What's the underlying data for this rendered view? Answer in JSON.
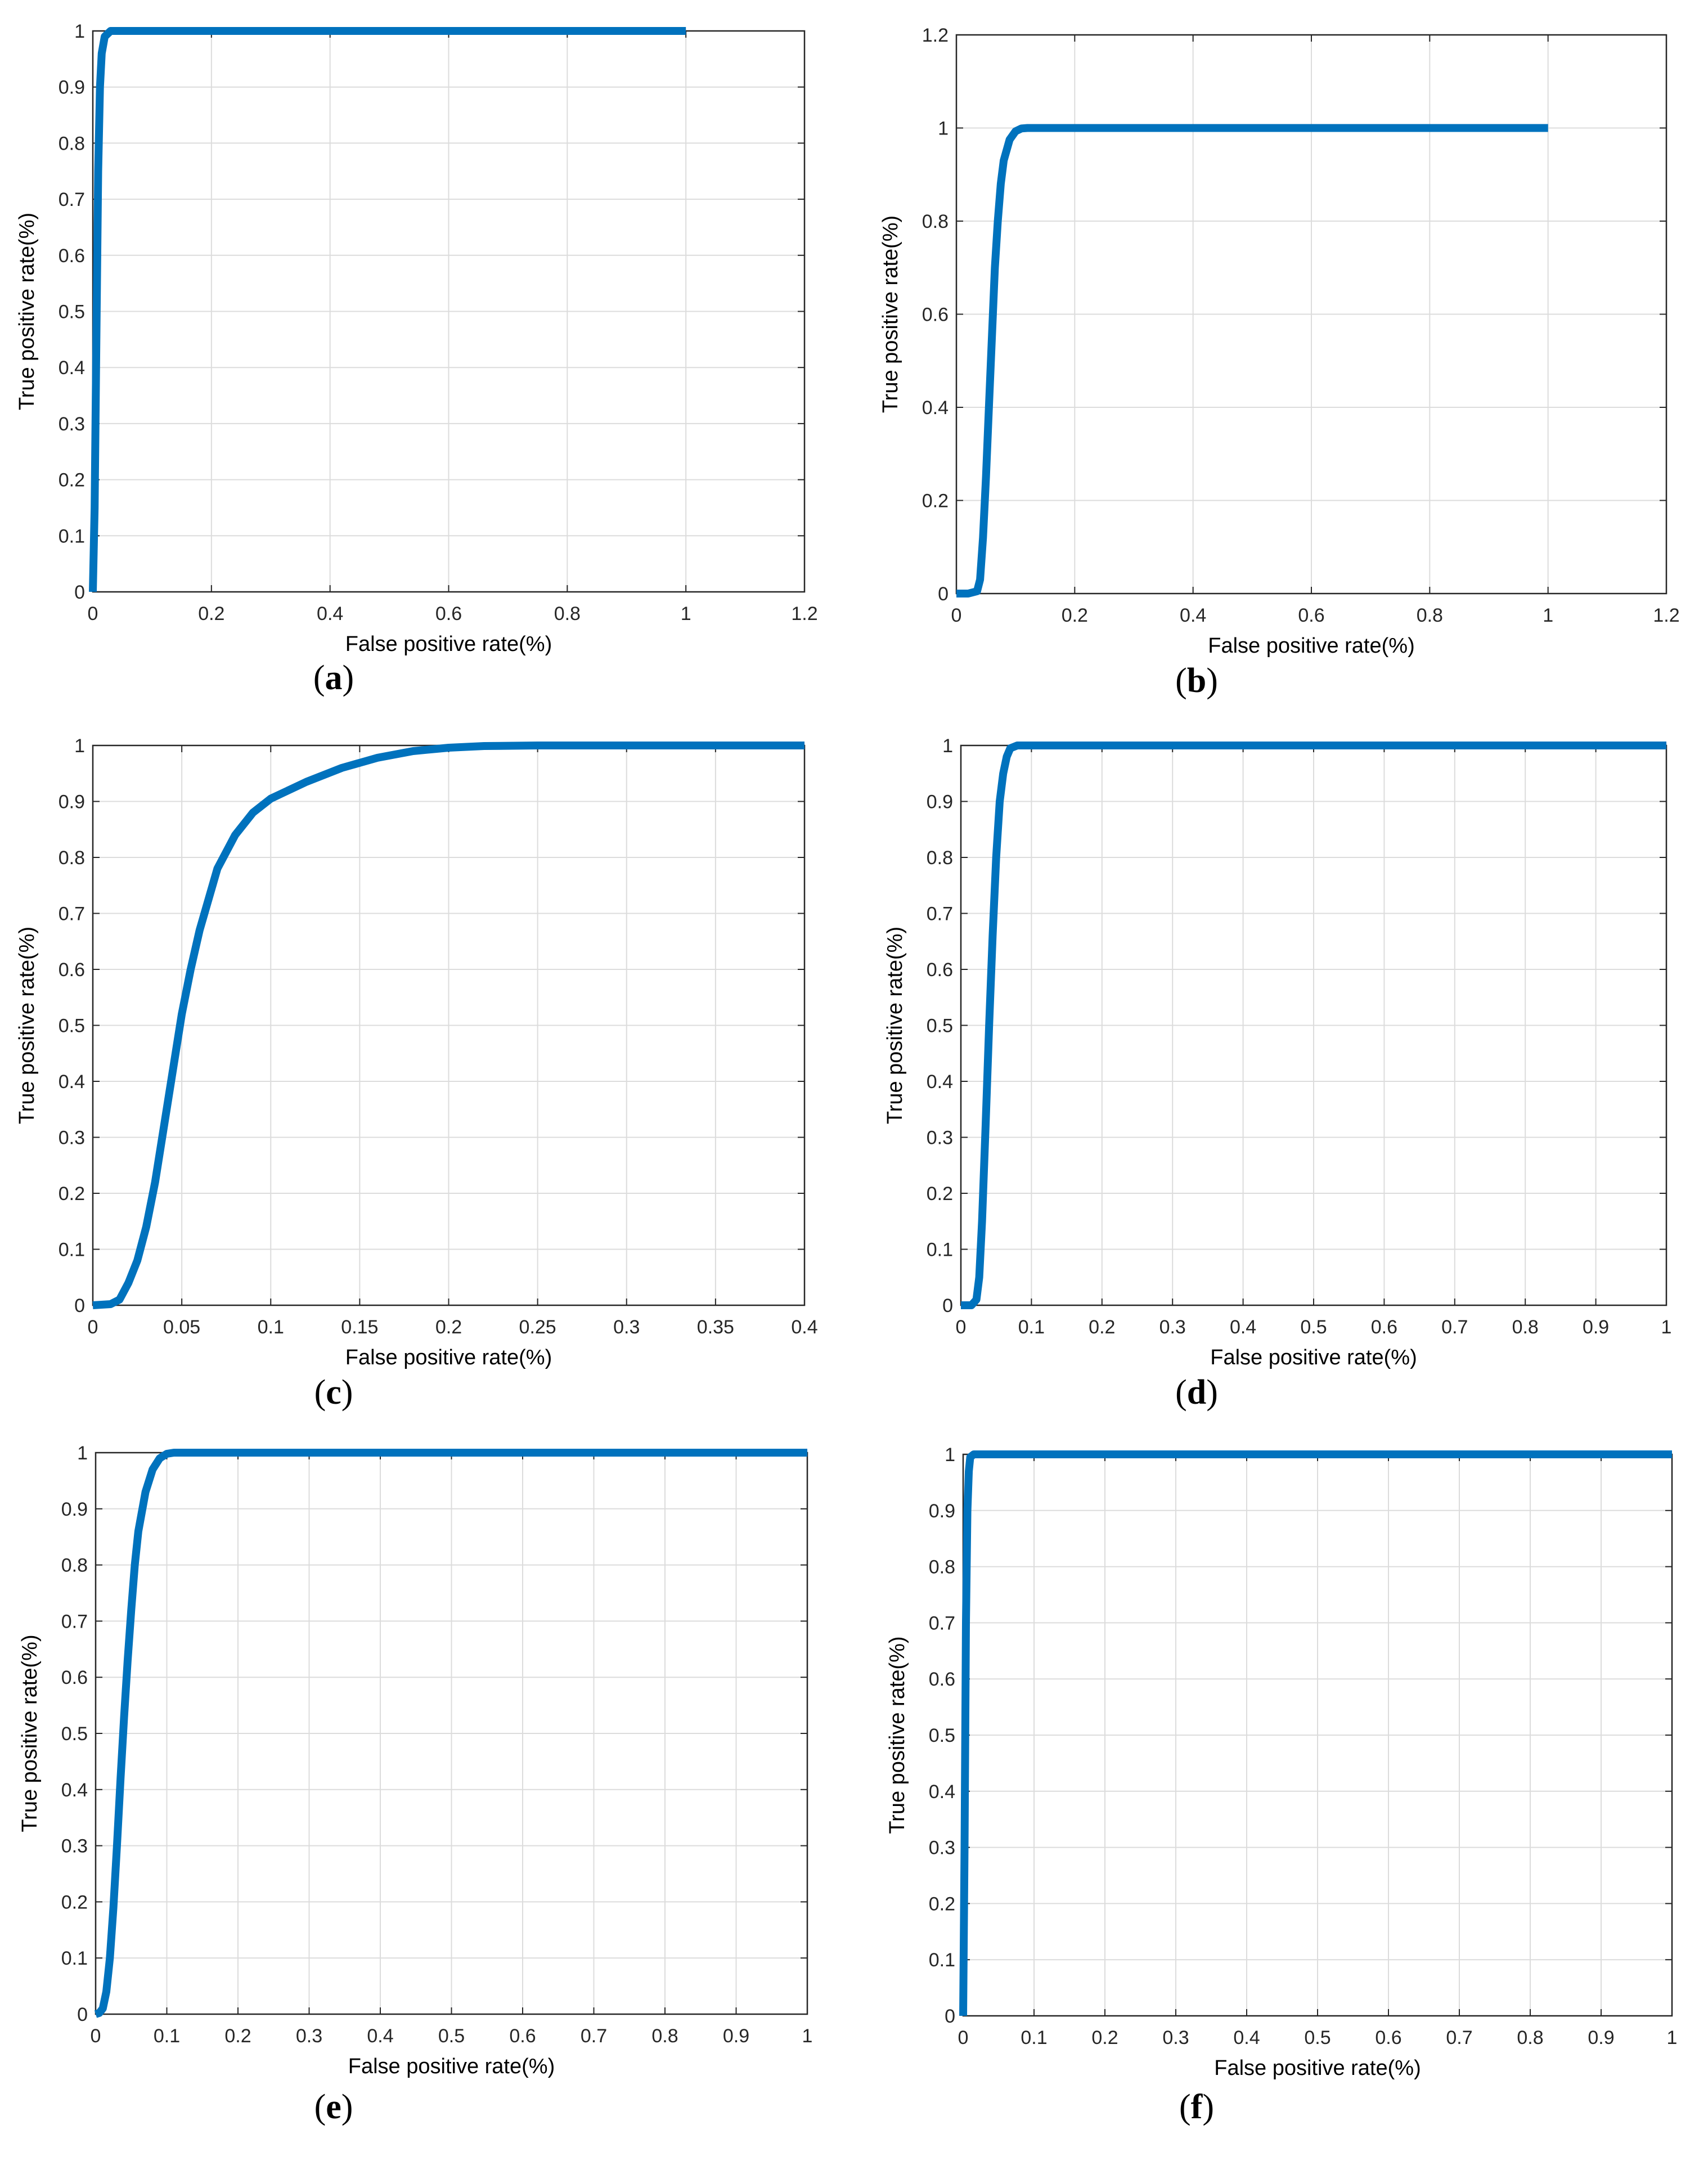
{
  "figure": {
    "colors": {
      "curve": "#0072BD",
      "grid": "#dcdcdc",
      "axis": "#262626",
      "text": "#000000"
    }
  },
  "chart_data": [
    {
      "id": "a",
      "caption": "a",
      "type": "line",
      "xlabel": "False positive rate(%)",
      "ylabel": "True positive rate(%)",
      "xlim": [
        0,
        1.2
      ],
      "ylim": [
        0,
        1
      ],
      "xticks": [
        0,
        0.2,
        0.4,
        0.6,
        0.8,
        1,
        1.2
      ],
      "xtick_labels": [
        "0",
        "0.2",
        "0.4",
        "0.6",
        "0.8",
        "1",
        "1.2"
      ],
      "yticks": [
        0,
        0.1,
        0.2,
        0.3,
        0.4,
        0.5,
        0.6,
        0.7,
        0.8,
        0.9,
        1
      ],
      "ytick_labels": [
        "0",
        "0.1",
        "0.2",
        "0.3",
        "0.4",
        "0.5",
        "0.6",
        "0.7",
        "0.8",
        "0.9",
        "1"
      ],
      "grid": true,
      "series": [
        {
          "x": [
            0,
            0.003,
            0.006,
            0.009,
            0.012,
            0.015,
            0.02,
            0.03,
            0.05,
            1.0
          ],
          "y": [
            0,
            0.15,
            0.45,
            0.75,
            0.9,
            0.96,
            0.99,
            1.0,
            1.0,
            1.0
          ]
        }
      ]
    },
    {
      "id": "b",
      "caption": "b",
      "type": "line",
      "xlabel": "False positive rate(%)",
      "ylabel": "True positive rate(%)",
      "xlim": [
        0,
        1.2
      ],
      "ylim": [
        0,
        1.2
      ],
      "xticks": [
        0,
        0.2,
        0.4,
        0.6,
        0.8,
        1,
        1.2
      ],
      "xtick_labels": [
        "0",
        "0.2",
        "0.4",
        "0.6",
        "0.8",
        "1",
        "1.2"
      ],
      "yticks": [
        0,
        0.2,
        0.4,
        0.6,
        0.8,
        1,
        1.2
      ],
      "ytick_labels": [
        "0",
        "0.2",
        "0.4",
        "0.6",
        "0.8",
        "1",
        "1.2"
      ],
      "grid": true,
      "series": [
        {
          "x": [
            0,
            0.02,
            0.035,
            0.04,
            0.045,
            0.05,
            0.055,
            0.06,
            0.065,
            0.07,
            0.075,
            0.08,
            0.09,
            0.1,
            0.11,
            0.12,
            0.15,
            1.0
          ],
          "y": [
            0,
            0,
            0.005,
            0.03,
            0.12,
            0.25,
            0.4,
            0.55,
            0.7,
            0.8,
            0.88,
            0.93,
            0.975,
            0.993,
            0.999,
            1.0,
            1.0,
            1.0
          ]
        }
      ]
    },
    {
      "id": "c",
      "caption": "c",
      "type": "line",
      "xlabel": "False positive rate(%)",
      "ylabel": "True positive rate(%)",
      "xlim": [
        0,
        0.4
      ],
      "ylim": [
        0,
        1
      ],
      "xticks": [
        0,
        0.05,
        0.1,
        0.15,
        0.2,
        0.25,
        0.3,
        0.35,
        0.4
      ],
      "xtick_labels": [
        "0",
        "0.05",
        "0.1",
        "0.15",
        "0.2",
        "0.25",
        "0.3",
        "0.35",
        "0.4"
      ],
      "yticks": [
        0,
        0.1,
        0.2,
        0.3,
        0.4,
        0.5,
        0.6,
        0.7,
        0.8,
        0.9,
        1
      ],
      "ytick_labels": [
        "0",
        "0.1",
        "0.2",
        "0.3",
        "0.4",
        "0.5",
        "0.6",
        "0.7",
        "0.8",
        "0.9",
        "1"
      ],
      "grid": true,
      "series": [
        {
          "x": [
            0,
            0.01,
            0.015,
            0.02,
            0.025,
            0.03,
            0.035,
            0.04,
            0.045,
            0.05,
            0.055,
            0.06,
            0.07,
            0.08,
            0.09,
            0.1,
            0.12,
            0.14,
            0.16,
            0.18,
            0.2,
            0.22,
            0.25,
            0.4
          ],
          "y": [
            0,
            0.002,
            0.01,
            0.04,
            0.08,
            0.14,
            0.22,
            0.32,
            0.42,
            0.52,
            0.6,
            0.67,
            0.78,
            0.84,
            0.88,
            0.905,
            0.935,
            0.96,
            0.978,
            0.99,
            0.996,
            0.999,
            1.0,
            1.0
          ]
        }
      ]
    },
    {
      "id": "d",
      "caption": "d",
      "type": "line",
      "xlabel": "False positive rate(%)",
      "ylabel": "True positive rate(%)",
      "xlim": [
        0,
        1
      ],
      "ylim": [
        0,
        1
      ],
      "xticks": [
        0,
        0.1,
        0.2,
        0.3,
        0.4,
        0.5,
        0.6,
        0.7,
        0.8,
        0.9,
        1
      ],
      "xtick_labels": [
        "0",
        "0.1",
        "0.2",
        "0.3",
        "0.4",
        "0.5",
        "0.6",
        "0.7",
        "0.8",
        "0.9",
        "1"
      ],
      "yticks": [
        0,
        0.1,
        0.2,
        0.3,
        0.4,
        0.5,
        0.6,
        0.7,
        0.8,
        0.9,
        1
      ],
      "ytick_labels": [
        "0",
        "0.1",
        "0.2",
        "0.3",
        "0.4",
        "0.5",
        "0.6",
        "0.7",
        "0.8",
        "0.9",
        "1"
      ],
      "grid": true,
      "series": [
        {
          "x": [
            0,
            0.015,
            0.022,
            0.026,
            0.03,
            0.035,
            0.04,
            0.045,
            0.05,
            0.055,
            0.06,
            0.065,
            0.07,
            0.08,
            0.1,
            1.0
          ],
          "y": [
            0,
            0,
            0.01,
            0.05,
            0.15,
            0.32,
            0.5,
            0.66,
            0.8,
            0.9,
            0.95,
            0.98,
            0.995,
            1.0,
            1.0,
            1.0
          ]
        }
      ]
    },
    {
      "id": "e",
      "caption": "e",
      "type": "line",
      "xlabel": "False positive rate(%)",
      "ylabel": "True positive rate(%)",
      "xlim": [
        0,
        1
      ],
      "ylim": [
        0,
        1
      ],
      "xticks": [
        0,
        0.1,
        0.2,
        0.3,
        0.4,
        0.5,
        0.6,
        0.7,
        0.8,
        0.9,
        1
      ],
      "xtick_labels": [
        "0",
        "0.1",
        "0.2",
        "0.3",
        "0.4",
        "0.5",
        "0.6",
        "0.7",
        "0.8",
        "0.9",
        "1"
      ],
      "yticks": [
        0,
        0.1,
        0.2,
        0.3,
        0.4,
        0.5,
        0.6,
        0.7,
        0.8,
        0.9,
        1
      ],
      "ytick_labels": [
        "0",
        "0.1",
        "0.2",
        "0.3",
        "0.4",
        "0.5",
        "0.6",
        "0.7",
        "0.8",
        "0.9",
        "1"
      ],
      "grid": true,
      "series": [
        {
          "x": [
            0,
            0.005,
            0.01,
            0.015,
            0.02,
            0.025,
            0.03,
            0.035,
            0.04,
            0.045,
            0.05,
            0.055,
            0.06,
            0.07,
            0.08,
            0.09,
            0.1,
            0.11,
            0.13,
            1.0
          ],
          "y": [
            0,
            0.002,
            0.01,
            0.04,
            0.1,
            0.19,
            0.3,
            0.42,
            0.53,
            0.63,
            0.72,
            0.8,
            0.86,
            0.93,
            0.97,
            0.99,
            0.998,
            1.0,
            1.0,
            1.0
          ]
        }
      ]
    },
    {
      "id": "f",
      "caption": "f",
      "type": "line",
      "xlabel": "False positive rate(%)",
      "ylabel": "True positive rate(%)",
      "xlim": [
        0,
        1
      ],
      "ylim": [
        0,
        1
      ],
      "xticks": [
        0,
        0.1,
        0.2,
        0.3,
        0.4,
        0.5,
        0.6,
        0.7,
        0.8,
        0.9,
        1
      ],
      "xtick_labels": [
        "0",
        "0.1",
        "0.2",
        "0.3",
        "0.4",
        "0.5",
        "0.6",
        "0.7",
        "0.8",
        "0.9",
        "1"
      ],
      "yticks": [
        0,
        0.1,
        0.2,
        0.3,
        0.4,
        0.5,
        0.6,
        0.7,
        0.8,
        0.9,
        1
      ],
      "ytick_labels": [
        "0",
        "0.1",
        "0.2",
        "0.3",
        "0.4",
        "0.5",
        "0.6",
        "0.7",
        "0.8",
        "0.9",
        "1"
      ],
      "grid": true,
      "series": [
        {
          "x": [
            0,
            0.002,
            0.004,
            0.006,
            0.008,
            0.01,
            0.015,
            1.0
          ],
          "y": [
            0,
            0.3,
            0.7,
            0.9,
            0.97,
            0.995,
            1.0,
            1.0
          ]
        }
      ]
    }
  ]
}
